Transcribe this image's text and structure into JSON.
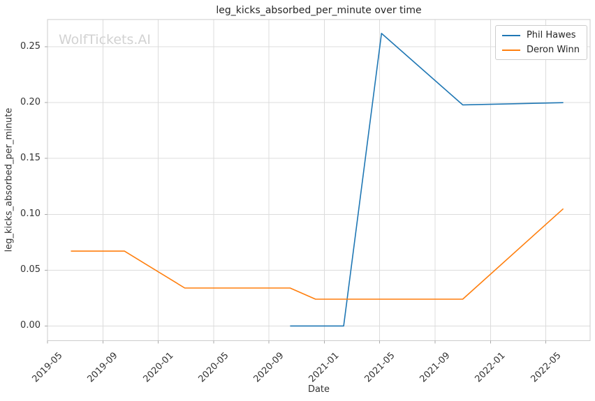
{
  "chart_data": {
    "type": "line",
    "title": "leg_kicks_absorbed_per_minute over time",
    "xlabel": "Date",
    "ylabel": "leg_kicks_absorbed_per_minute",
    "watermark": "WolfTickets.AI",
    "grid": true,
    "legend_position": "upper right",
    "x_ticks": [
      "2019-05",
      "2019-09",
      "2020-01",
      "2020-05",
      "2020-09",
      "2021-01",
      "2021-05",
      "2021-09",
      "2022-01",
      "2022-05"
    ],
    "y_ticks": [
      "0.00",
      "0.05",
      "0.10",
      "0.15",
      "0.20",
      "0.25"
    ],
    "x_range": [
      "2019-05-01",
      "2022-08-07"
    ],
    "y_range": [
      -0.013,
      0.274
    ],
    "series": [
      {
        "name": "Phil Hawes",
        "color": "#1f77b4",
        "points": [
          [
            "2020-10-17",
            0.0
          ],
          [
            "2021-02-13",
            0.0
          ],
          [
            "2021-05-05",
            0.262
          ],
          [
            "2021-11-01",
            0.198
          ],
          [
            "2022-06-09",
            0.2
          ]
        ]
      },
      {
        "name": "Deron Winn",
        "color": "#ff7f0e",
        "points": [
          [
            "2019-06-22",
            0.067
          ],
          [
            "2019-10-18",
            0.067
          ],
          [
            "2020-02-29",
            0.034
          ],
          [
            "2020-10-17",
            0.034
          ],
          [
            "2020-12-12",
            0.024
          ],
          [
            "2021-11-01",
            0.024
          ],
          [
            "2022-06-09",
            0.105
          ]
        ]
      }
    ],
    "style": {
      "grid_color": "#dcdcdc",
      "spine_color": "#cccccc",
      "tick_color": "#aaaaaa",
      "background": "#ffffff"
    }
  }
}
